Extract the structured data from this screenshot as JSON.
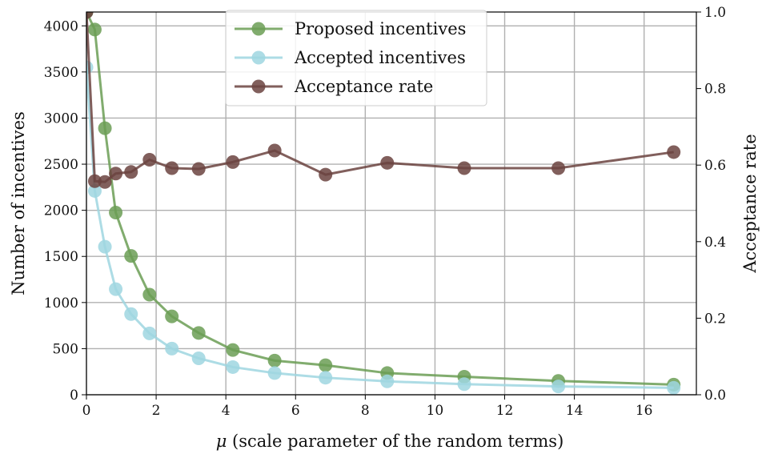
{
  "chart_data": {
    "type": "line",
    "xlabel_symbol": "μ",
    "xlabel": " (scale parameter of the random terms)",
    "ylabel": "Number of incentives",
    "y2label": "Acceptance rate",
    "xlim": [
      0,
      17.5
    ],
    "ylim": [
      0,
      4150
    ],
    "y2lim": [
      0,
      1.0
    ],
    "x_ticks": [
      0,
      2,
      4,
      6,
      8,
      10,
      12,
      14,
      16
    ],
    "y_ticks": [
      0,
      500,
      1000,
      1500,
      2000,
      2500,
      3000,
      3500,
      4000
    ],
    "y2_ticks": [
      "0.0",
      "0.2",
      "0.4",
      "0.6",
      "0.8",
      "1.0"
    ],
    "grid": true,
    "legend_position": "top-center",
    "x": [
      0.0,
      0.24,
      0.53,
      0.84,
      1.28,
      1.81,
      2.45,
      3.22,
      4.2,
      5.4,
      6.86,
      8.63,
      10.84,
      13.54,
      16.85
    ],
    "series": [
      {
        "name": "Proposed incentives",
        "axis": "left",
        "color": "#6b9e55",
        "values": [
          4150,
          3960,
          2890,
          1975,
          1505,
          1085,
          850,
          670,
          485,
          370,
          320,
          235,
          195,
          150,
          110
        ]
      },
      {
        "name": "Accepted incentives",
        "axis": "left",
        "color": "#9fd6e0",
        "values": [
          3550,
          2210,
          1605,
          1145,
          875,
          665,
          500,
          395,
          300,
          235,
          185,
          145,
          115,
          90,
          75
        ]
      },
      {
        "name": "Acceptance rate",
        "axis": "right",
        "color": "#6b4340",
        "values": [
          1.0,
          0.558,
          0.556,
          0.578,
          0.582,
          0.614,
          0.592,
          0.59,
          0.608,
          0.638,
          0.575,
          0.606,
          0.592,
          0.592,
          0.634
        ]
      }
    ]
  }
}
